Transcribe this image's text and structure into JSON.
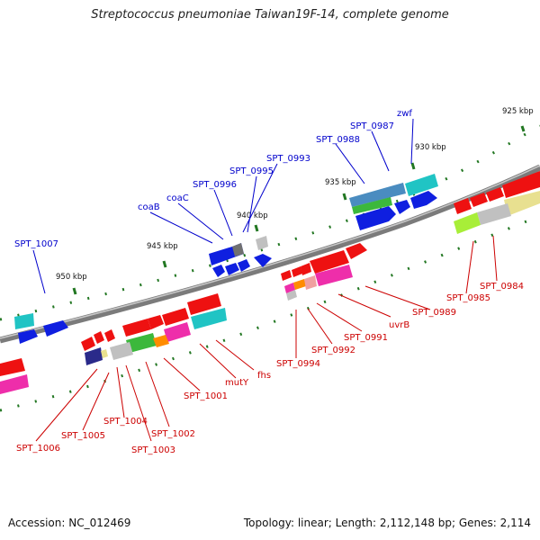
{
  "title": "Streptococcus pneumoniae Taiwan19F-14, complete genome",
  "accession_text": "Accession: NC_012469",
  "topology_text": "Topology: linear; Length: 2,112,148 bp; Genes: 2,114",
  "colors": {
    "forward_label": "#0000cc",
    "reverse_label": "#cc0000",
    "backbone": "#808080",
    "tick": "#227722"
  },
  "kbp_marks": [
    "925 kbp",
    "930 kbp",
    "935 kbp",
    "940 kbp",
    "945 kbp",
    "950 kbp"
  ],
  "forward_genes": [
    "zwf",
    "SPT_0987",
    "SPT_0988",
    "SPT_0993",
    "SPT_0995",
    "SPT_0996",
    "coaC",
    "coaB",
    "SPT_1007"
  ],
  "reverse_genes": [
    "SPT_0984",
    "SPT_0985",
    "SPT_0989",
    "uvrB",
    "SPT_0991",
    "SPT_0992",
    "SPT_0994",
    "fhs",
    "mutY",
    "SPT_1001",
    "SPT_1002",
    "SPT_1003",
    "SPT_1004",
    "SPT_1005",
    "SPT_1006"
  ]
}
